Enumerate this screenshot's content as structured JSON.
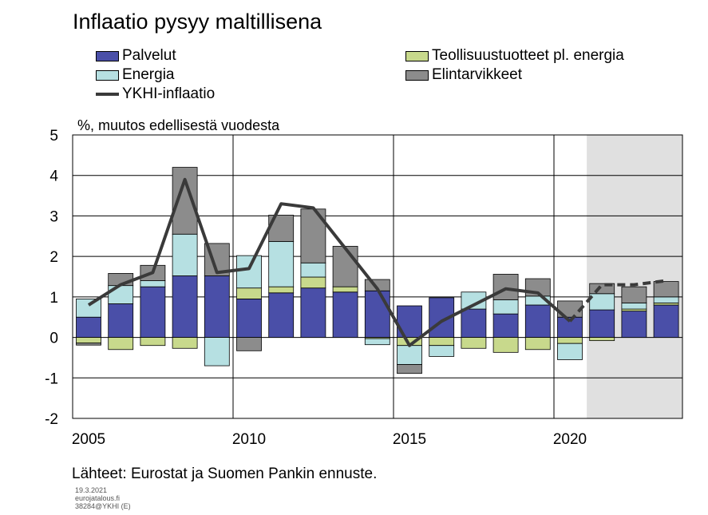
{
  "chart_data": {
    "type": "bar",
    "title": "Inflaatio pysyy maltillisena",
    "ylabel": "%, muutos edellisestä vuodesta",
    "ylim": [
      -2,
      5
    ],
    "yticks": [
      "5",
      "4",
      "3",
      "2",
      "1",
      "0",
      "-1",
      "-2"
    ],
    "xticks": [
      "2005",
      "2010",
      "2015",
      "2020"
    ],
    "x": [
      2005,
      2006,
      2007,
      2008,
      2009,
      2010,
      2011,
      2012,
      2013,
      2014,
      2015,
      2016,
      2017,
      2018,
      2019,
      2020,
      2021,
      2022,
      2023
    ],
    "forecast_from": 2021,
    "grid": true,
    "legend_position": "top",
    "series": [
      {
        "name": "Palvelut",
        "color": "#4a4fa8",
        "values": [
          0.5,
          0.83,
          1.25,
          1.52,
          1.52,
          0.95,
          1.1,
          1.22,
          1.12,
          1.15,
          0.78,
          0.98,
          0.7,
          0.58,
          0.8,
          0.5,
          0.68,
          0.65,
          0.8
        ]
      },
      {
        "name": "Teollisuustuotteet pl. energia",
        "color": "#c8d98c",
        "values": [
          -0.14,
          -0.3,
          -0.2,
          -0.27,
          0.0,
          0.27,
          0.15,
          0.27,
          0.13,
          -0.03,
          -0.2,
          -0.2,
          -0.27,
          -0.37,
          -0.3,
          -0.15,
          -0.08,
          0.05,
          0.05
        ]
      },
      {
        "name": "Energia",
        "color": "#b6e0e2",
        "values": [
          0.45,
          0.45,
          0.15,
          1.03,
          -0.7,
          0.8,
          1.12,
          0.35,
          0.0,
          -0.15,
          -0.47,
          -0.27,
          0.42,
          0.35,
          0.22,
          -0.4,
          0.4,
          0.15,
          0.15
        ]
      },
      {
        "name": "Elintarvikkeet",
        "color": "#8c8c8c",
        "values": [
          -0.05,
          0.3,
          0.38,
          1.65,
          0.8,
          -0.33,
          0.65,
          1.33,
          1.0,
          0.28,
          -0.22,
          0.0,
          0.0,
          0.63,
          0.43,
          0.4,
          0.25,
          0.4,
          0.38
        ]
      }
    ],
    "line": {
      "name": "YKHI-inflaatio",
      "color": "#3a3a3a",
      "values": [
        0.8,
        1.3,
        1.6,
        3.9,
        1.6,
        1.7,
        3.3,
        3.2,
        2.2,
        1.2,
        -0.2,
        0.4,
        0.8,
        1.2,
        1.1,
        0.4,
        1.3,
        1.3,
        1.4
      ]
    },
    "source": "Lähteet: Eurostat ja Suomen Pankin ennuste."
  },
  "footer": {
    "date": "19.3.2021",
    "site": "eurojatalous.fi",
    "code": "38284@YKHI (E)"
  }
}
